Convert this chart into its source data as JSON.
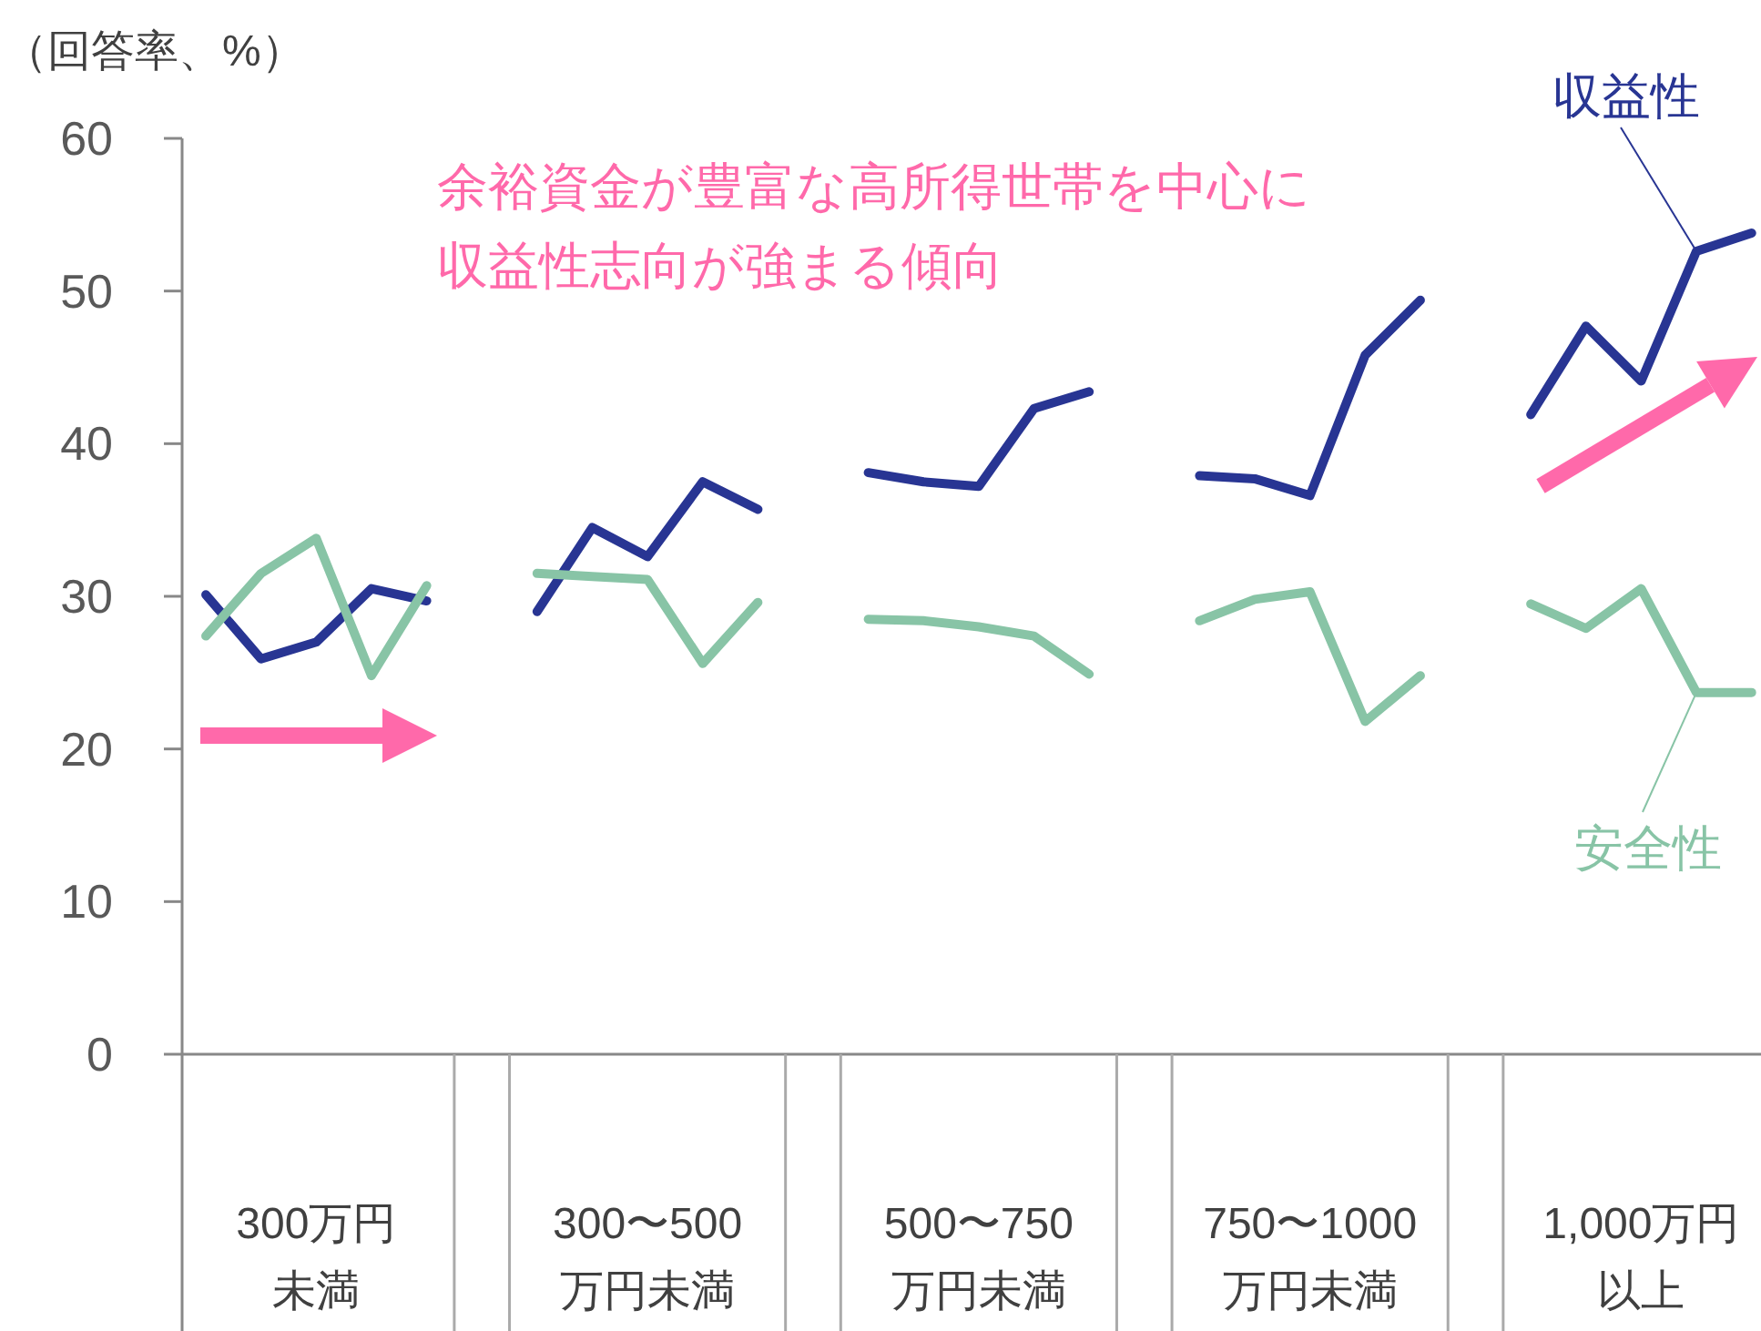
{
  "chart_data": {
    "type": "line",
    "ylabel": "（回答率、%）",
    "categories": [
      null,
      null,
      "300万円未満",
      null,
      null,
      null,
      null,
      null,
      "300〜500万円未満",
      null,
      null,
      null,
      null,
      null,
      "500〜750万円未満",
      null,
      null,
      null,
      null,
      null,
      "750〜1000万円未満",
      null,
      null,
      null,
      null,
      null,
      "1,000万円以上",
      null,
      null
    ],
    "series": [
      {
        "name": "収益性",
        "color": "#283593",
        "values": [
          30.1,
          25.9,
          27.0,
          30.5,
          29.7,
          null,
          29.0,
          34.5,
          32.6,
          37.5,
          35.7,
          null,
          38.1,
          37.5,
          37.2,
          42.3,
          43.4,
          null,
          37.9,
          37.7,
          36.6,
          45.8,
          49.4,
          null,
          41.9,
          47.7,
          44.1,
          52.6,
          53.8
        ]
      },
      {
        "name": "安全性",
        "color": "#88c4a6",
        "values": [
          27.4,
          31.5,
          33.8,
          24.8,
          30.7,
          null,
          31.5,
          31.3,
          31.1,
          25.6,
          29.6,
          null,
          28.5,
          28.4,
          28.0,
          27.4,
          24.9,
          null,
          28.4,
          29.8,
          30.3,
          21.8,
          24.8,
          null,
          29.5,
          27.9,
          30.5,
          23.7,
          23.7
        ]
      }
    ],
    "ylim": [
      0,
      60
    ],
    "yticks": [
      0,
      10,
      20,
      30,
      40,
      50,
      60
    ],
    "grid": false,
    "marker": "none",
    "line_style": "solid",
    "annotations": [
      "余裕資金が豊富な高所得世帯を中心に収益性志向が強まる傾向"
    ]
  }
}
